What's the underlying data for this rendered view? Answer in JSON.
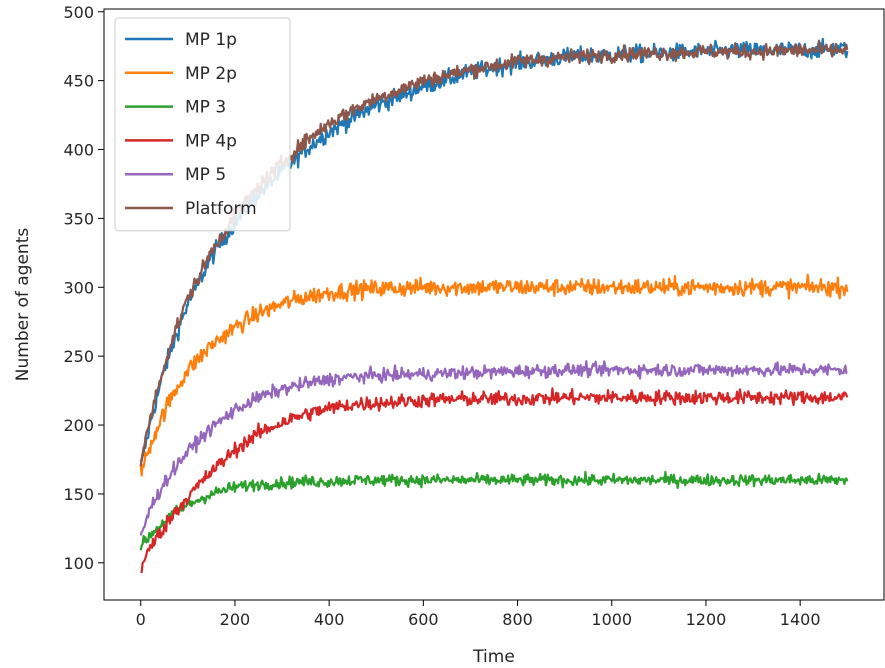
{
  "chart_data": {
    "type": "line",
    "xlabel": "Time",
    "ylabel": "Number of agents",
    "xlim": [
      -78,
      1578
    ],
    "ylim": [
      73,
      502
    ],
    "xticks": [
      0,
      200,
      400,
      600,
      800,
      1000,
      1200,
      1400
    ],
    "yticks": [
      100,
      150,
      200,
      250,
      300,
      350,
      400,
      450,
      500
    ],
    "legend_position": "upper-left",
    "x": [
      0,
      25,
      50,
      75,
      100,
      150,
      200,
      250,
      300,
      350,
      400,
      450,
      500,
      600,
      700,
      800,
      900,
      1000,
      1100,
      1200,
      1300,
      1400,
      1500
    ],
    "series": [
      {
        "name": "MP 1p",
        "color": "#1f77b4",
        "values": [
          170,
          208,
          240,
          265,
          288,
          322,
          347,
          368,
          384,
          400,
          413,
          423,
          432,
          446,
          456,
          463,
          467,
          469,
          470,
          471,
          472,
          472,
          473
        ]
      },
      {
        "name": "MP 2p",
        "color": "#ff7f0e",
        "values": [
          165,
          190,
          210,
          226,
          240,
          258,
          271,
          281,
          288,
          293,
          296,
          298,
          299,
          300,
          300,
          300,
          300,
          300,
          300,
          300,
          300,
          300,
          300
        ]
      },
      {
        "name": "MP 3",
        "color": "#2ca02c",
        "values": [
          112,
          122,
          130,
          137,
          142,
          150,
          155,
          157,
          158,
          159,
          159,
          160,
          160,
          160,
          160,
          160,
          160,
          160,
          160,
          160,
          160,
          160,
          160
        ]
      },
      {
        "name": "MP 4p",
        "color": "#d62728",
        "values": [
          96,
          114,
          126,
          138,
          148,
          166,
          182,
          194,
          202,
          208,
          212,
          215,
          216,
          218,
          219,
          219,
          220,
          220,
          220,
          220,
          220,
          220,
          220
        ]
      },
      {
        "name": "MP 5",
        "color": "#9467bd",
        "values": [
          120,
          143,
          158,
          170,
          181,
          198,
          211,
          220,
          226,
          230,
          233,
          235,
          236,
          237,
          238,
          239,
          240,
          240,
          240,
          240,
          240,
          240,
          240
        ]
      },
      {
        "name": "Platform",
        "color": "#8c564b",
        "values": [
          172,
          212,
          244,
          270,
          292,
          326,
          352,
          373,
          390,
          406,
          419,
          429,
          437,
          450,
          458,
          464,
          467,
          469,
          470,
          471,
          471,
          472,
          472
        ]
      }
    ],
    "noise_amplitude": {
      "MP 1p": 6,
      "MP 2p": 6,
      "MP 3": 4,
      "MP 4p": 5,
      "MP 5": 4.5,
      "Platform": 5
    }
  }
}
